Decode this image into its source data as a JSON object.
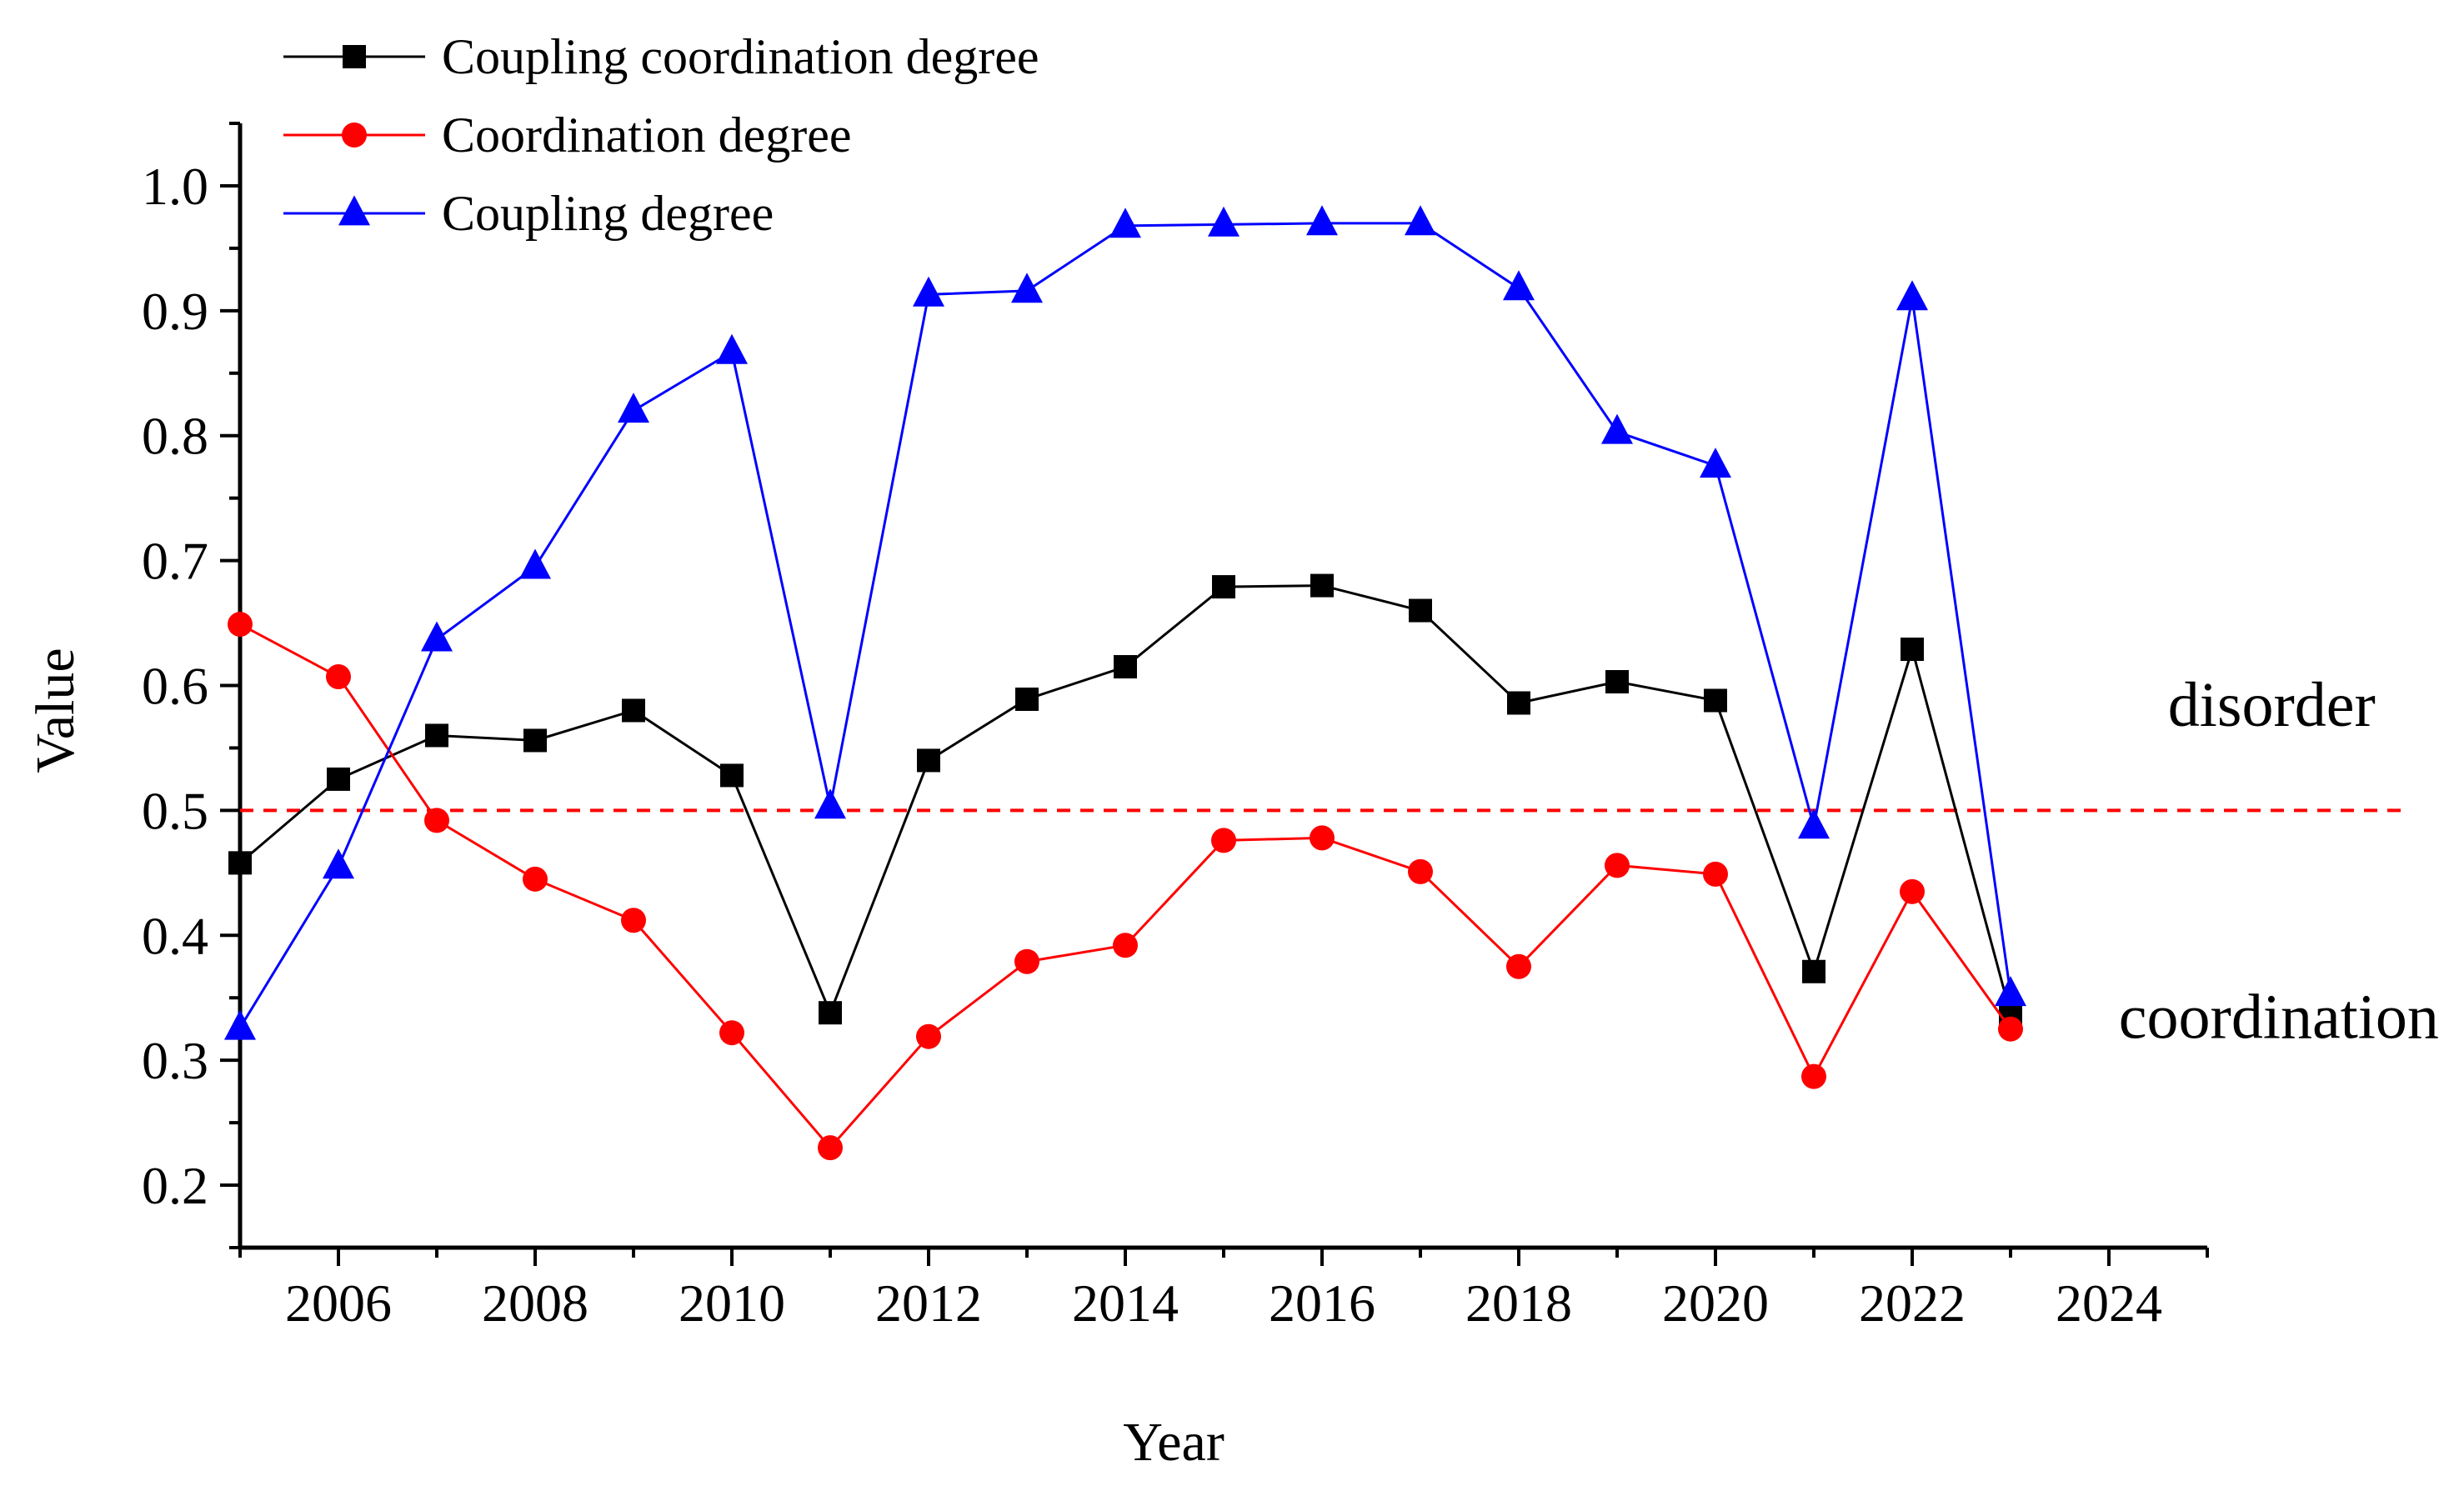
{
  "chart_data": {
    "type": "line",
    "title": "",
    "xlabel": "Year",
    "ylabel": "Value",
    "xlim": [
      2005,
      2025
    ],
    "ylim": [
      0.15,
      1.05
    ],
    "xticks": [
      2006,
      2008,
      2010,
      2012,
      2014,
      2016,
      2018,
      2020,
      2022,
      2024
    ],
    "yticks": [
      0.2,
      0.3,
      0.4,
      0.5,
      0.6,
      0.7,
      0.8,
      0.9,
      1.0
    ],
    "ytick_labels": [
      "0.2",
      "0.3",
      "0.4",
      "0.5",
      "0.6",
      "0.7",
      "0.8",
      "0.9",
      "1.0"
    ],
    "grid": false,
    "legend_position": "top-left",
    "x": [
      2005,
      2006,
      2007,
      2008,
      2009,
      2010,
      2011,
      2012,
      2013,
      2014,
      2015,
      2016,
      2017,
      2018,
      2019,
      2020,
      2021,
      2022,
      2023
    ],
    "series": [
      {
        "name": "Coupling coordination degree",
        "color": "#000000",
        "marker": "square",
        "values": [
          0.458,
          0.525,
          0.56,
          0.556,
          0.58,
          0.528,
          0.338,
          0.54,
          0.589,
          0.615,
          0.679,
          0.68,
          0.66,
          0.586,
          0.603,
          0.588,
          0.371,
          0.629,
          0.337
        ]
      },
      {
        "name": "Coordination degree",
        "color": "#ff0000",
        "marker": "circle",
        "values": [
          0.649,
          0.607,
          0.492,
          0.445,
          0.412,
          0.322,
          0.23,
          0.319,
          0.379,
          0.392,
          0.476,
          0.478,
          0.451,
          0.375,
          0.456,
          0.449,
          0.287,
          0.435,
          0.325
        ]
      },
      {
        "name": "Coupling degree",
        "color": "#0000ff",
        "marker": "triangle",
        "values": [
          0.326,
          0.455,
          0.637,
          0.695,
          0.82,
          0.867,
          0.503,
          0.913,
          0.916,
          0.968,
          0.969,
          0.97,
          0.97,
          0.918,
          0.803,
          0.776,
          0.487,
          0.91,
          0.353
        ]
      }
    ],
    "reference_line": {
      "y": 0.5,
      "color": "#ff0000",
      "style": "dashed"
    },
    "annotations": [
      {
        "text": "disorder",
        "x": 2024.6,
        "y": 0.585
      },
      {
        "text": "coordination",
        "x": 2024.1,
        "y": 0.335
      }
    ]
  }
}
